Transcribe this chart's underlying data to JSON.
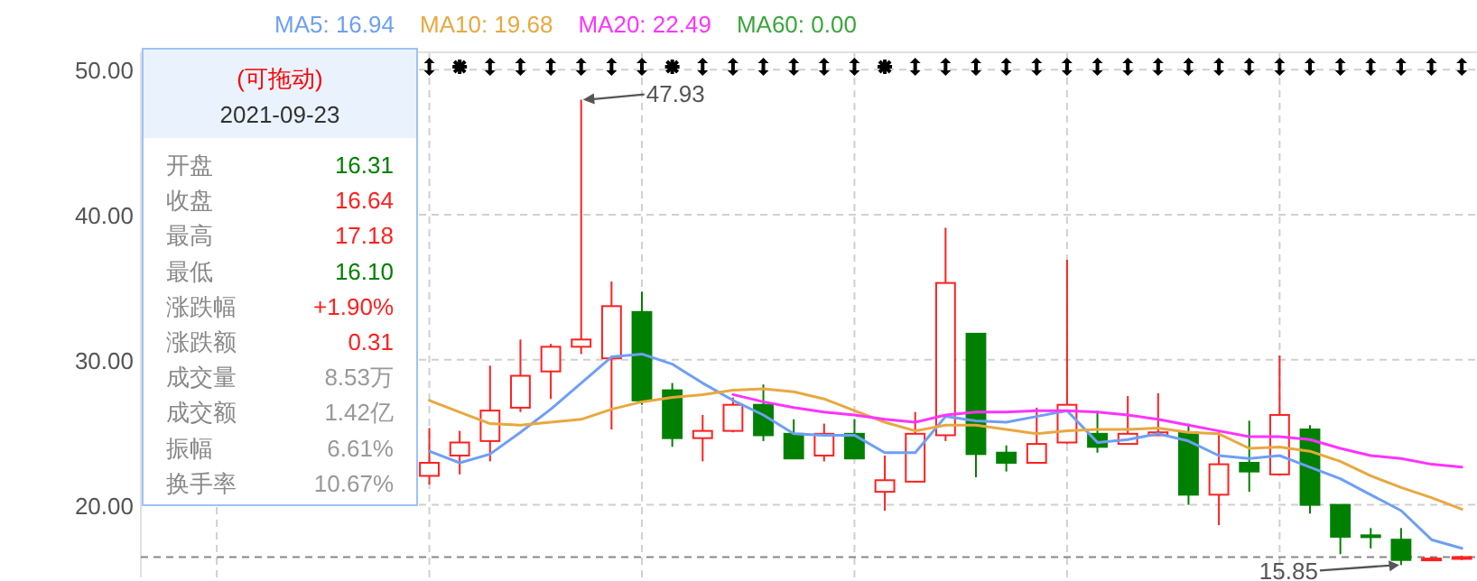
{
  "chart_data": {
    "type": "candlestick",
    "categories": [
      null,
      null,
      null,
      null,
      null,
      null,
      null,
      null,
      null,
      null,
      null,
      null,
      null,
      null,
      null,
      null,
      null,
      null,
      null,
      null,
      null,
      null,
      null,
      null,
      null,
      null,
      null,
      null,
      null,
      null,
      null,
      null,
      null,
      null,
      null,
      null,
      null,
      null,
      null,
      null,
      null,
      null,
      null,
      null
    ],
    "ohlc": [
      null,
      null,
      null,
      null,
      null,
      null,
      null,
      null,
      null,
      [
        22.0,
        25.3,
        21.4,
        22.9
      ],
      [
        23.4,
        25.1,
        22.1,
        24.3
      ],
      [
        24.4,
        29.6,
        23.0,
        26.5
      ],
      [
        26.7,
        31.4,
        26.4,
        28.9
      ],
      [
        29.2,
        31.1,
        27.3,
        30.9
      ],
      [
        30.9,
        47.93,
        30.4,
        31.4
      ],
      [
        30.1,
        35.4,
        25.2,
        33.7
      ],
      [
        33.3,
        34.7,
        26.9,
        27.2
      ],
      [
        27.9,
        28.4,
        24.0,
        24.6
      ],
      [
        24.6,
        26.2,
        23.0,
        25.1
      ],
      [
        25.1,
        27.4,
        25.0,
        26.9
      ],
      [
        26.9,
        28.3,
        24.4,
        24.8
      ],
      [
        24.9,
        25.9,
        23.2,
        23.2
      ],
      [
        23.4,
        25.6,
        23.0,
        24.9
      ],
      [
        24.9,
        25.9,
        23.2,
        23.2
      ],
      [
        20.9,
        23.4,
        19.6,
        21.7
      ],
      [
        21.6,
        26.4,
        21.6,
        24.9
      ],
      [
        24.8,
        39.1,
        24.4,
        35.3
      ],
      [
        31.8,
        31.8,
        21.9,
        23.5
      ],
      [
        23.6,
        24.1,
        22.3,
        22.9
      ],
      [
        22.9,
        26.7,
        22.9,
        24.2
      ],
      [
        24.3,
        36.9,
        24.2,
        26.9
      ],
      [
        24.9,
        26.5,
        23.6,
        24.0
      ],
      [
        24.2,
        27.5,
        24.2,
        24.9
      ],
      [
        24.8,
        27.7,
        24.8,
        25.0
      ],
      [
        25.0,
        25.6,
        20.0,
        20.7
      ],
      [
        20.7,
        25.1,
        18.6,
        22.8
      ],
      [
        22.9,
        25.8,
        20.9,
        22.3
      ],
      [
        22.1,
        30.3,
        22.1,
        26.2
      ],
      [
        25.2,
        25.5,
        19.4,
        20.0
      ],
      [
        20.0,
        20.0,
        16.6,
        17.8
      ],
      [
        17.9,
        18.4,
        17.0,
        17.8
      ],
      [
        17.6,
        18.4,
        15.85,
        16.2
      ],
      [
        16.2,
        16.4,
        16.2,
        16.3
      ],
      [
        16.3,
        16.5,
        16.2,
        16.4
      ]
    ],
    "series": [
      {
        "name": "MA5: 16.94",
        "type": "line",
        "color": "#6e9ff5",
        "values": [
          null,
          null,
          null,
          null,
          null,
          null,
          null,
          null,
          null,
          23.7,
          22.9,
          23.5,
          25.0,
          26.6,
          28.4,
          30.2,
          30.4,
          29.7,
          28.4,
          27.2,
          26.2,
          24.9,
          24.8,
          24.8,
          23.6,
          23.6,
          26.1,
          25.8,
          25.7,
          26.1,
          26.5,
          24.3,
          24.5,
          24.9,
          24.4,
          23.4,
          23.2,
          23.4,
          22.6,
          21.8,
          20.7,
          19.6,
          17.6,
          17.0
        ]
      },
      {
        "name": "MA10: 19.68",
        "type": "line",
        "color": "#e8a840",
        "values": [
          null,
          null,
          null,
          null,
          null,
          null,
          null,
          null,
          null,
          27.2,
          26.4,
          25.6,
          25.5,
          25.7,
          25.9,
          26.6,
          27.1,
          27.4,
          27.6,
          27.9,
          28.0,
          27.8,
          27.3,
          26.5,
          25.7,
          25.1,
          25.5,
          25.5,
          25.2,
          24.9,
          25.1,
          25.2,
          25.2,
          25.3,
          25.0,
          24.9,
          23.9,
          24.0,
          23.7,
          23.0,
          22.0,
          21.2,
          20.5,
          19.7
        ]
      },
      {
        "name": "MA20: 22.49",
        "type": "line",
        "color": "#ff33ff",
        "values": [
          null,
          null,
          null,
          null,
          null,
          null,
          null,
          null,
          null,
          null,
          null,
          null,
          null,
          null,
          null,
          null,
          null,
          null,
          null,
          27.6,
          27.1,
          26.7,
          26.4,
          26.2,
          25.9,
          25.7,
          26.2,
          26.4,
          26.4,
          26.5,
          26.5,
          26.4,
          26.2,
          25.9,
          25.5,
          25.1,
          24.7,
          24.7,
          24.5,
          23.9,
          23.4,
          23.2,
          22.8,
          22.6
        ]
      },
      {
        "name": "MA60: 0.00",
        "type": "line",
        "color": "#3aa63a",
        "values": [
          null,
          null,
          null,
          null,
          null,
          null,
          null,
          null,
          null,
          null,
          null,
          null,
          null,
          null,
          null,
          null,
          null,
          null,
          null,
          null,
          null,
          null,
          null,
          null,
          null,
          null,
          null,
          null,
          null,
          null,
          null,
          null,
          null,
          null,
          null,
          null,
          null,
          null,
          null,
          null,
          null,
          null,
          null,
          null
        ]
      }
    ],
    "ylim": [
      15,
      51.2
    ],
    "yticks": [
      {
        "value": 50,
        "label": "50.00"
      },
      {
        "value": 40,
        "label": "40.00"
      },
      {
        "value": 30,
        "label": "30.00"
      },
      {
        "value": 20,
        "label": "20.00"
      }
    ],
    "grid": true,
    "legend": "top left",
    "ref_lines": [
      {
        "axis": "y",
        "value": 16.4,
        "color": "#888888",
        "line_style": "dashed"
      }
    ],
    "annotations": [
      "(可拖动)",
      "2021-09-23",
      "开盘",
      "16.31",
      "收盘",
      "16.64",
      "最高",
      "17.18",
      "最低",
      "16.10",
      "涨跌幅",
      "+1.90%",
      "涨跌额",
      "0.31",
      "成交量",
      "8.53万",
      "成交额",
      "1.42亿",
      "振幅",
      "6.61%",
      "换手率",
      "10.67%",
      "47.93",
      "15.85"
    ]
  }
}
